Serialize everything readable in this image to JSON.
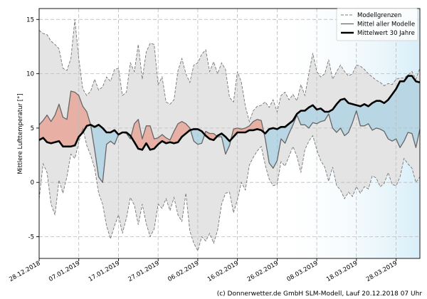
{
  "chart_data": {
    "type": "line",
    "ylabel": "Mittlere Lufttemperatur [°]",
    "ylim": [
      -7,
      16
    ],
    "yticks": [
      -5,
      0,
      5,
      10,
      15
    ],
    "n_days": 97,
    "x_tick_days": [
      0,
      10,
      20,
      30,
      40,
      50,
      60,
      70,
      80,
      90
    ],
    "x_tick_labels": [
      "28.12.2018",
      "07.01.2019",
      "17.01.2019",
      "27.01.2019",
      "06.02.2019",
      "16.02.2019",
      "26.02.2019",
      "08.03.2019",
      "18.03.2019",
      "28.03.2019"
    ],
    "legend": {
      "position": "top-right",
      "items": [
        "Modellgrenzen",
        "Mittel aller Modelle",
        "Mittelwert 30 Jahre"
      ]
    },
    "colors": {
      "envelope": "#e4e4e4",
      "above": "#e8b0a4",
      "below": "#b9d6e4",
      "climate": "#000000",
      "model": "#666666",
      "limits": "#777777"
    },
    "series": [
      {
        "name": "Modellgrenzen (oben)",
        "values": [
          14.0,
          13.7,
          13.6,
          13.0,
          12.7,
          12.3,
          10.5,
          10.3,
          11.4,
          15.0,
          11.4,
          8.6,
          8.0,
          8.4,
          9.5,
          8.5,
          8.8,
          9.7,
          9.3,
          10.4,
          10.5,
          8.0,
          8.3,
          11.0,
          10.2,
          12.7,
          9.5,
          12.0,
          12.8,
          12.7,
          9.0,
          9.7,
          7.4,
          7.2,
          7.6,
          10.3,
          11.4,
          10.0,
          9.2,
          10.8,
          11.0,
          11.8,
          12.2,
          10.2,
          11.1,
          10.0,
          11.0,
          10.4,
          7.8,
          7.4,
          10.2,
          9.2,
          7.0,
          5.6,
          6.6,
          7.0,
          7.1,
          7.4,
          6.9,
          7.6,
          6.5,
          8.0,
          8.3,
          7.6,
          8.1,
          7.5,
          9.0,
          8.0,
          10.0,
          11.9,
          10.2,
          9.7,
          10.0,
          11.3,
          9.5,
          10.2,
          10.8,
          10.2,
          9.8,
          10.0,
          10.8,
          10.7,
          10.4,
          10.0,
          9.7,
          9.4,
          9.2,
          8.9,
          9.1,
          9.0,
          9.5,
          9.6,
          9.6,
          9.9,
          10.2,
          9.5,
          10.5
        ]
      },
      {
        "name": "Modellgrenzen (unten)",
        "values": [
          -1.5,
          1.7,
          0.9,
          -2.0,
          -3.0,
          0.2,
          -1.0,
          0.5,
          2.6,
          2.2,
          3.7,
          5.0,
          3.4,
          2.5,
          1.3,
          -1.0,
          -2.0,
          -4.0,
          -5.2,
          -4.0,
          -3.0,
          -4.7,
          -3.3,
          -1.4,
          -2.1,
          -3.9,
          -2.0,
          -3.8,
          -5.0,
          -4.3,
          -2.0,
          -2.4,
          -1.5,
          -2.6,
          -1.4,
          -3.0,
          -3.6,
          -1.0,
          -4.5,
          -5.6,
          -6.3,
          -5.0,
          -5.4,
          -4.7,
          -5.6,
          -4.4,
          -2.0,
          -1.0,
          -0.9,
          -2.8,
          -1.6,
          0.0,
          -0.7,
          1.6,
          2.3,
          2.9,
          3.3,
          1.6,
          0.3,
          -0.3,
          -0.2,
          1.9,
          1.5,
          2.4,
          3.3,
          2.4,
          0.9,
          3.0,
          3.8,
          4.3,
          3.0,
          2.0,
          1.4,
          0.1,
          1.4,
          -0.3,
          -0.7,
          -1.5,
          -0.9,
          -1.3,
          -0.4,
          -1.0,
          -0.4,
          -0.6,
          0.6,
          0.4,
          -0.4,
          -0.1,
          0.9,
          -0.2,
          -0.3,
          0.5,
          2.2,
          1.7,
          1.3,
          0.0,
          0.5
        ]
      },
      {
        "name": "Mittel aller Modelle",
        "values": [
          5.3,
          5.7,
          6.2,
          5.6,
          6.2,
          7.2,
          6.0,
          5.8,
          8.4,
          8.3,
          8.0,
          7.0,
          6.5,
          5.3,
          3.0,
          0.5,
          0.0,
          3.5,
          3.8,
          3.5,
          4.4,
          4.6,
          4.5,
          4.0,
          5.4,
          5.8,
          4.0,
          5.2,
          5.2,
          4.0,
          4.1,
          4.4,
          4.1,
          3.9,
          4.7,
          5.4,
          5.6,
          5.4,
          5.0,
          3.8,
          3.5,
          3.6,
          4.7,
          4.5,
          4.5,
          4.2,
          4.2,
          2.6,
          3.4,
          4.9,
          5.0,
          4.9,
          5.0,
          5.2,
          5.6,
          5.8,
          5.7,
          4.0,
          1.8,
          1.3,
          2.0,
          4.0,
          3.6,
          4.5,
          5.3,
          6.2,
          5.3,
          5.3,
          5.0,
          5.5,
          5.4,
          5.6,
          5.7,
          6.3,
          5.0,
          4.6,
          5.0,
          4.3,
          4.6,
          5.5,
          6.6,
          5.2,
          5.2,
          5.4,
          4.8,
          5.0,
          4.9,
          4.7,
          4.0,
          3.8,
          4.0,
          3.2,
          3.8,
          4.6,
          4.5,
          3.2,
          4.9
        ]
      },
      {
        "name": "Mittelwert 30 Jahre",
        "values": [
          3.9,
          4.1,
          3.7,
          3.6,
          3.7,
          3.8,
          3.3,
          3.3,
          3.3,
          3.4,
          4.2,
          4.6,
          5.2,
          5.3,
          5.1,
          5.3,
          5.0,
          4.6,
          4.6,
          4.8,
          4.4,
          4.6,
          4.6,
          4.3,
          3.7,
          3.1,
          3.0,
          3.6,
          3.0,
          3.1,
          3.5,
          3.8,
          3.6,
          3.7,
          3.6,
          3.7,
          4.2,
          4.5,
          4.8,
          4.9,
          4.9,
          4.7,
          4.3,
          4.0,
          3.9,
          4.3,
          4.5,
          4.2,
          3.8,
          4.2,
          4.6,
          4.6,
          4.6,
          4.8,
          4.8,
          4.9,
          4.8,
          4.5,
          4.9,
          5.0,
          4.9,
          5.1,
          5.1,
          5.4,
          5.7,
          6.3,
          6.6,
          6.6,
          6.9,
          7.1,
          6.7,
          6.8,
          6.5,
          6.5,
          6.7,
          7.2,
          7.6,
          7.7,
          7.3,
          7.2,
          7.1,
          7.0,
          7.2,
          7.0,
          7.3,
          7.5,
          7.5,
          7.3,
          7.6,
          8.1,
          8.6,
          9.3,
          9.3,
          9.8,
          9.8,
          9.3,
          9.2
        ]
      }
    ]
  },
  "footer": {
    "credit": "(c) Donnerwetter.de GmbH SLM-Modell, Lauf 20.12.2018 07 Uhr"
  }
}
